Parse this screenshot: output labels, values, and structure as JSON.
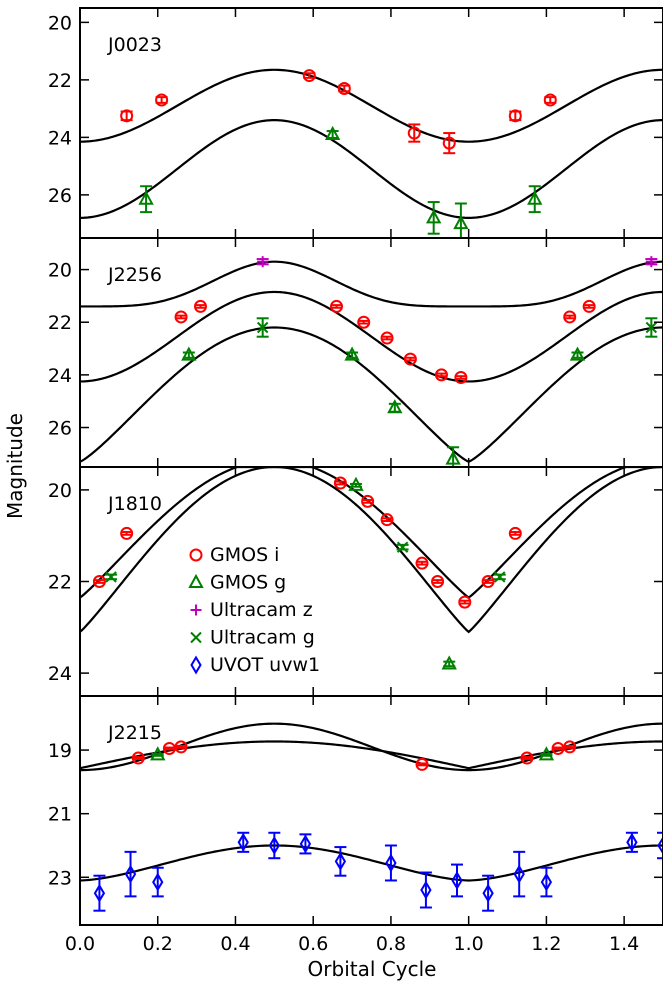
{
  "chart_data": {
    "type": "scatter",
    "xlabel": "Orbital Cycle",
    "ylabel": "Magnitude",
    "xlim": [
      0.0,
      1.5
    ],
    "x_ticks": [
      "0.0",
      "0.2",
      "0.4",
      "0.6",
      "0.8",
      "1.0",
      "1.2",
      "1.4"
    ],
    "legend": {
      "placement": "third-panel-left",
      "entries": [
        {
          "key": "gmos_i",
          "label": "GMOS i",
          "color": "#ff0000",
          "marker": "circle"
        },
        {
          "key": "gmos_g",
          "label": "GMOS g",
          "color": "#008000",
          "marker": "triangle"
        },
        {
          "key": "ultracam_z",
          "label": "Ultracam z",
          "color": "#bf00bf",
          "marker": "plus"
        },
        {
          "key": "ultracam_g",
          "label": "Ultracam g",
          "color": "#008000",
          "marker": "x"
        },
        {
          "key": "uvot_uvw1",
          "label": "UVOT uvw1",
          "color": "#0000ff",
          "marker": "diamond"
        }
      ]
    },
    "panels": [
      {
        "label": "J0023",
        "ylim": [
          27.5,
          19.5
        ],
        "y_ticks": [
          20,
          22,
          24,
          26
        ],
        "y_tick_labels": [
          "20",
          "22",
          "24",
          "26"
        ],
        "models": [
          {
            "type": "sin",
            "mean": 22.9,
            "amp": 1.25,
            "phase_center": 0.5,
            "sharp": 1.0
          },
          {
            "type": "sin",
            "mean": 25.1,
            "amp": 1.7,
            "phase_center": 0.5,
            "sharp": 1.0
          }
        ],
        "series": [
          {
            "key": "gmos_i",
            "points": [
              {
                "x": 0.12,
                "y": 23.25,
                "err": 0.15
              },
              {
                "x": 0.21,
                "y": 22.7,
                "err": 0.1
              },
              {
                "x": 0.59,
                "y": 21.85,
                "err": 0.08
              },
              {
                "x": 0.68,
                "y": 22.3,
                "err": 0.1
              },
              {
                "x": 0.86,
                "y": 23.85,
                "err": 0.3
              },
              {
                "x": 0.95,
                "y": 24.2,
                "err": 0.35
              },
              {
                "x": 1.12,
                "y": 23.25,
                "err": 0.15
              },
              {
                "x": 1.21,
                "y": 22.7,
                "err": 0.1
              }
            ]
          },
          {
            "key": "gmos_g",
            "points": [
              {
                "x": 0.17,
                "y": 26.15,
                "err": 0.45
              },
              {
                "x": 0.65,
                "y": 23.9,
                "err": 0.12
              },
              {
                "x": 0.91,
                "y": 26.8,
                "err": 0.55
              },
              {
                "x": 0.98,
                "y": 27.0,
                "err": 0.7
              },
              {
                "x": 1.17,
                "y": 26.15,
                "err": 0.45
              }
            ]
          }
        ]
      },
      {
        "label": "J2256",
        "ylim": [
          27.5,
          18.8
        ],
        "y_ticks": [
          20,
          22,
          24,
          26
        ],
        "y_tick_labels": [
          "20",
          "22",
          "24",
          "26"
        ],
        "models": [
          {
            "type": "sin",
            "mean": 20.55,
            "amp": 0.85,
            "phase_center": 0.5,
            "sharp": 2.2
          },
          {
            "type": "sin",
            "mean": 22.55,
            "amp": 1.7,
            "phase_center": 0.5,
            "sharp": 1.0
          },
          {
            "type": "sin",
            "mean": 24.75,
            "amp": 2.55,
            "phase_center": 0.5,
            "sharp": 0.6
          }
        ],
        "series": [
          {
            "key": "ultracam_z",
            "points": [
              {
                "x": 0.47,
                "y": 19.7,
                "err": 0.1
              },
              {
                "x": 1.47,
                "y": 19.7,
                "err": 0.1
              }
            ]
          },
          {
            "key": "gmos_i",
            "points": [
              {
                "x": 0.26,
                "y": 21.8,
                "err": 0.05
              },
              {
                "x": 0.31,
                "y": 21.4,
                "err": 0.05
              },
              {
                "x": 0.66,
                "y": 21.4,
                "err": 0.05
              },
              {
                "x": 0.73,
                "y": 22.0,
                "err": 0.05
              },
              {
                "x": 0.79,
                "y": 22.6,
                "err": 0.05
              },
              {
                "x": 0.85,
                "y": 23.4,
                "err": 0.05
              },
              {
                "x": 0.93,
                "y": 24.0,
                "err": 0.05
              },
              {
                "x": 0.98,
                "y": 24.1,
                "err": 0.05
              },
              {
                "x": 1.26,
                "y": 21.8,
                "err": 0.05
              },
              {
                "x": 1.31,
                "y": 21.4,
                "err": 0.05
              }
            ]
          },
          {
            "key": "gmos_g",
            "points": [
              {
                "x": 0.28,
                "y": 23.25,
                "err": 0.1
              },
              {
                "x": 0.7,
                "y": 23.25,
                "err": 0.1
              },
              {
                "x": 0.81,
                "y": 25.25,
                "err": 0.15
              },
              {
                "x": 0.96,
                "y": 27.2,
                "err": 0.45
              },
              {
                "x": 1.28,
                "y": 23.25,
                "err": 0.1
              }
            ]
          },
          {
            "key": "ultracam_g",
            "points": [
              {
                "x": 0.47,
                "y": 22.2,
                "err": 0.35
              },
              {
                "x": 1.47,
                "y": 22.2,
                "err": 0.35
              }
            ]
          }
        ]
      },
      {
        "label": "J1810",
        "ylim": [
          24.5,
          19.5
        ],
        "y_ticks": [
          20,
          22,
          24
        ],
        "y_tick_labels": [
          "20",
          "22",
          "24"
        ],
        "models": [
          {
            "type": "sin",
            "mean": 20.85,
            "amp": 1.5,
            "phase_center": 0.5,
            "sharp": 0.55,
            "floor": 19.5
          },
          {
            "type": "sin",
            "mean": 21.3,
            "amp": 1.8,
            "phase_center": 0.5,
            "sharp": 0.55,
            "floor": 19.5
          }
        ],
        "series": [
          {
            "key": "gmos_i",
            "points": [
              {
                "x": 0.05,
                "y": 22.0,
                "err": 0.03
              },
              {
                "x": 0.12,
                "y": 20.95,
                "err": 0.03
              },
              {
                "x": 0.67,
                "y": 19.85,
                "err": 0.03
              },
              {
                "x": 0.74,
                "y": 20.25,
                "err": 0.03
              },
              {
                "x": 0.79,
                "y": 20.65,
                "err": 0.03
              },
              {
                "x": 0.88,
                "y": 21.6,
                "err": 0.03
              },
              {
                "x": 0.92,
                "y": 22.0,
                "err": 0.03
              },
              {
                "x": 0.99,
                "y": 22.45,
                "err": 0.03
              },
              {
                "x": 1.05,
                "y": 22.0,
                "err": 0.03
              },
              {
                "x": 1.12,
                "y": 20.95,
                "err": 0.03
              }
            ]
          },
          {
            "key": "gmos_g",
            "points": [
              {
                "x": 0.71,
                "y": 19.9,
                "err": 0.03
              },
              {
                "x": 0.95,
                "y": 23.8,
                "err": 0.05
              }
            ]
          },
          {
            "key": "ultracam_g",
            "points": [
              {
                "x": 0.08,
                "y": 21.9,
                "err": 0.05
              },
              {
                "x": 0.83,
                "y": 21.25,
                "err": 0.05
              },
              {
                "x": 1.08,
                "y": 21.9,
                "err": 0.05
              }
            ]
          }
        ]
      },
      {
        "label": "J2215",
        "ylim": [
          24.5,
          17.3
        ],
        "y_ticks": [
          19,
          21,
          23
        ],
        "y_tick_labels": [
          "19",
          "21",
          "23"
        ],
        "models": [
          {
            "type": "sin",
            "mean": 18.9,
            "amp": 0.73,
            "phase_center": 0.5,
            "sharp": 1.0
          },
          {
            "type": "sin",
            "mean": 19.15,
            "amp": 0.42,
            "phase_center": 0.5,
            "sharp": 0.5
          },
          {
            "type": "sin",
            "mean": 22.55,
            "amp": 0.55,
            "phase_center": 0.5,
            "sharp": 0.8
          }
        ],
        "series": [
          {
            "key": "gmos_i",
            "points": [
              {
                "x": 0.15,
                "y": 19.25,
                "err": 0.03
              },
              {
                "x": 0.23,
                "y": 18.95,
                "err": 0.03
              },
              {
                "x": 0.26,
                "y": 18.9,
                "err": 0.03
              },
              {
                "x": 0.88,
                "y": 19.45,
                "err": 0.03
              },
              {
                "x": 1.15,
                "y": 19.25,
                "err": 0.03
              },
              {
                "x": 1.23,
                "y": 18.95,
                "err": 0.03
              },
              {
                "x": 1.26,
                "y": 18.9,
                "err": 0.03
              }
            ]
          },
          {
            "key": "gmos_g",
            "points": [
              {
                "x": 0.2,
                "y": 19.15,
                "err": 0.03
              },
              {
                "x": 1.2,
                "y": 19.15,
                "err": 0.03
              }
            ]
          },
          {
            "key": "uvot_uvw1",
            "points": [
              {
                "x": 0.05,
                "y": 23.5,
                "err": 0.55
              },
              {
                "x": 0.13,
                "y": 22.9,
                "err": 0.7
              },
              {
                "x": 0.2,
                "y": 23.15,
                "err": 0.45
              },
              {
                "x": 0.42,
                "y": 21.9,
                "err": 0.3
              },
              {
                "x": 0.5,
                "y": 22.0,
                "err": 0.4
              },
              {
                "x": 0.58,
                "y": 21.95,
                "err": 0.3
              },
              {
                "x": 0.67,
                "y": 22.5,
                "err": 0.45
              },
              {
                "x": 0.8,
                "y": 22.55,
                "err": 0.55
              },
              {
                "x": 0.89,
                "y": 23.4,
                "err": 0.55
              },
              {
                "x": 0.97,
                "y": 23.1,
                "err": 0.5
              },
              {
                "x": 1.05,
                "y": 23.5,
                "err": 0.55
              },
              {
                "x": 1.13,
                "y": 22.9,
                "err": 0.7
              },
              {
                "x": 1.2,
                "y": 23.15,
                "err": 0.45
              },
              {
                "x": 1.42,
                "y": 21.9,
                "err": 0.3
              },
              {
                "x": 1.5,
                "y": 22.0,
                "err": 0.4
              }
            ]
          }
        ]
      }
    ]
  }
}
